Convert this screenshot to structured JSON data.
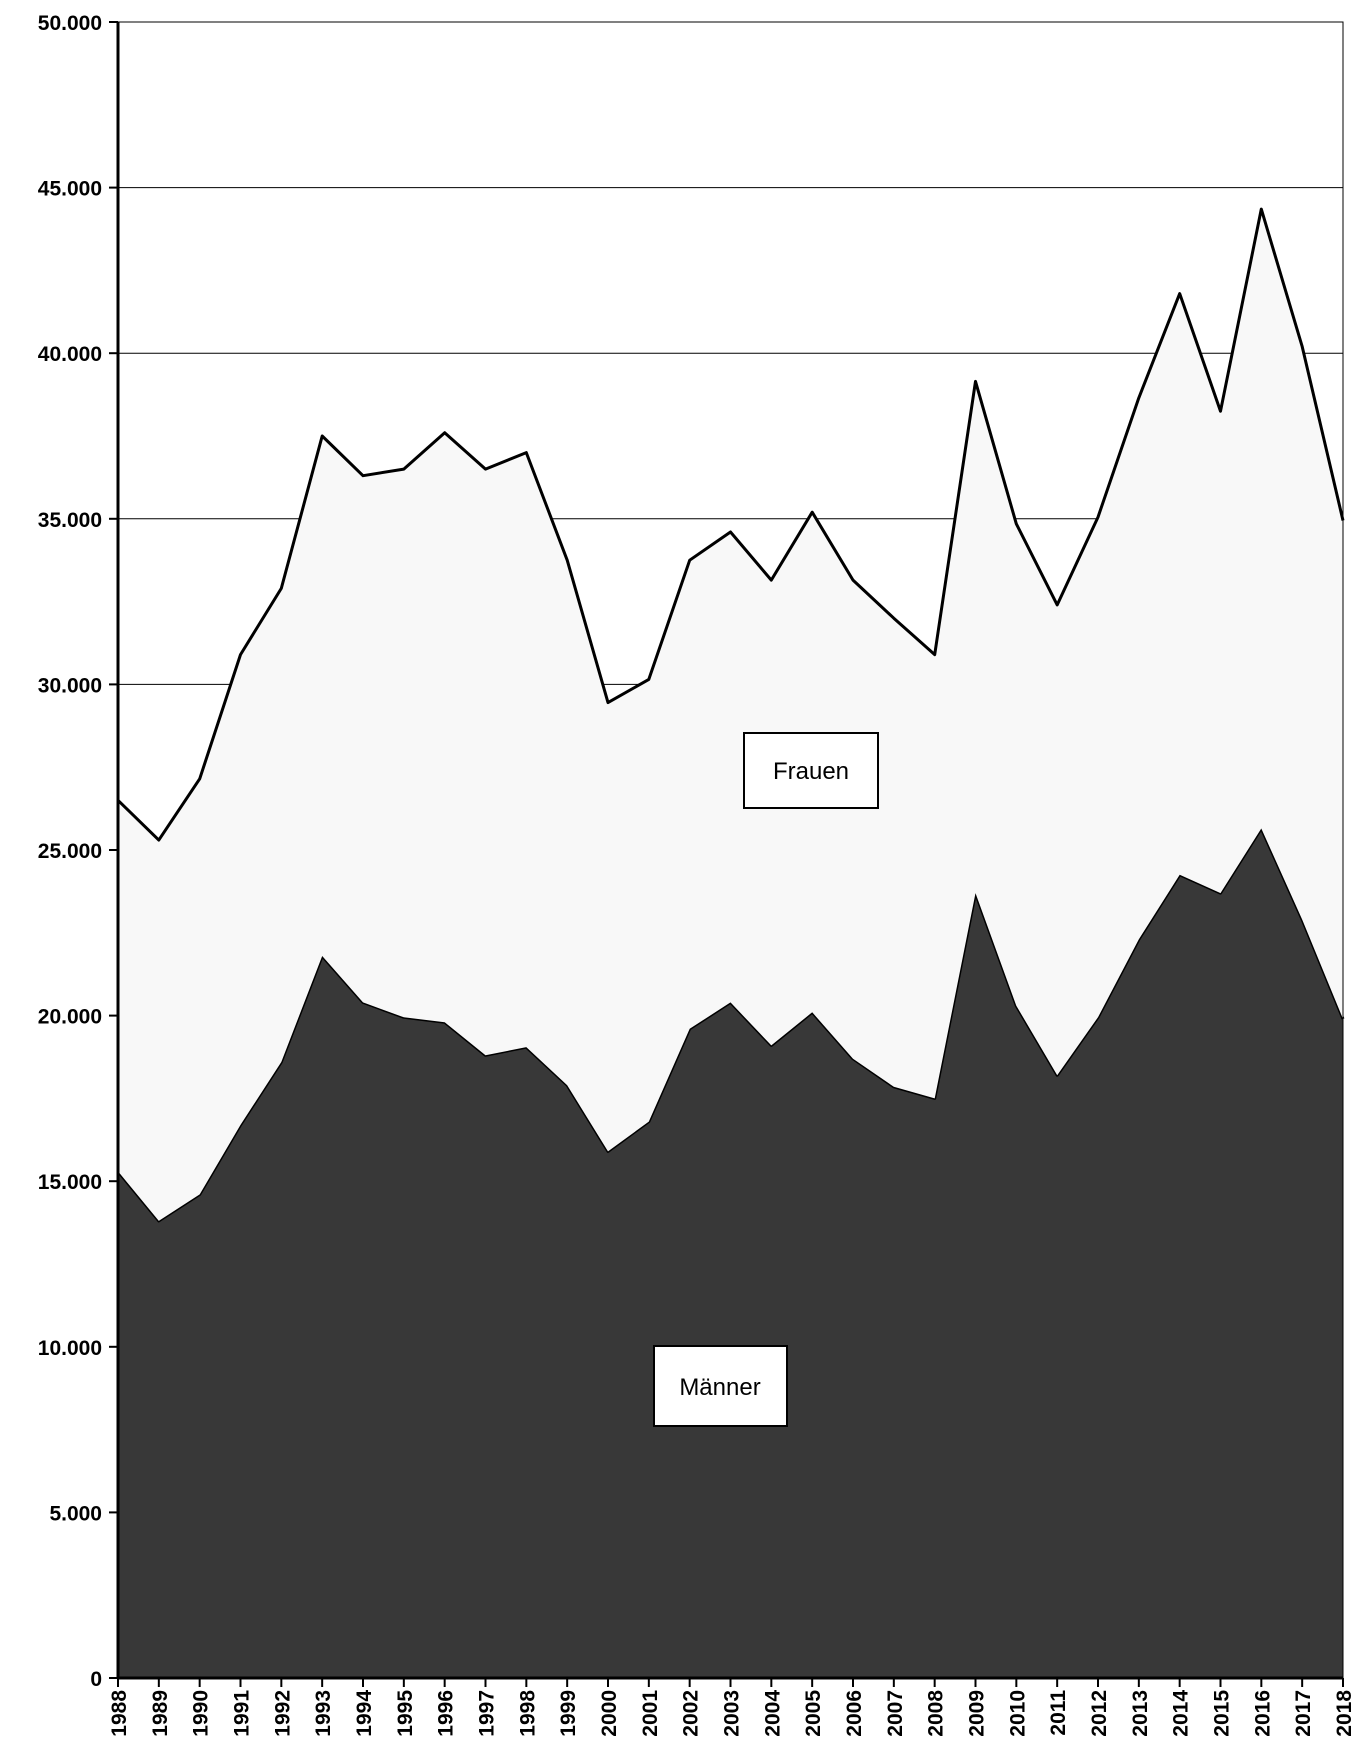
{
  "chart_data": {
    "type": "area",
    "stacked": true,
    "x": [
      "1988",
      "1989",
      "1990",
      "1991",
      "1992",
      "1993",
      "1994",
      "1995",
      "1996",
      "1997",
      "1998",
      "1999",
      "2000",
      "2001",
      "2002",
      "2003",
      "2004",
      "2005",
      "2006",
      "2007",
      "2008",
      "2009",
      "2010",
      "2011",
      "2012",
      "2013",
      "2014",
      "2015",
      "2016",
      "2017",
      "2018"
    ],
    "series": [
      {
        "name": "Männer",
        "color": "#383838",
        "values": [
          15300,
          13800,
          14600,
          16700,
          18600,
          21800,
          20400,
          19950,
          19800,
          18800,
          19050,
          17900,
          15900,
          16800,
          19600,
          20400,
          19100,
          20100,
          18700,
          17850,
          17500,
          23700,
          20300,
          18200,
          19950,
          22300,
          24250,
          23700,
          25650,
          22900,
          19900
        ]
      },
      {
        "name": "Frauen",
        "color": "#f8f8f8",
        "values": [
          11200,
          11500,
          12550,
          14200,
          14300,
          15700,
          15900,
          16550,
          17800,
          17700,
          17950,
          15850,
          13550,
          13350,
          14150,
          14200,
          14050,
          15100,
          14450,
          14150,
          13400,
          15450,
          14550,
          14200,
          15100,
          16350,
          17550,
          14550,
          18700,
          17300,
          15050
        ]
      }
    ],
    "labels": {
      "frauen": "Frauen",
      "maenner": "Männer"
    },
    "yticks": [
      "0",
      "5.000",
      "10.000",
      "15.000",
      "20.000",
      "25.000",
      "30.000",
      "35.000",
      "40.000",
      "45.000",
      "50.000"
    ],
    "ylim": [
      0,
      50000
    ],
    "grid": true,
    "title": "",
    "xlabel": "",
    "ylabel": ""
  }
}
